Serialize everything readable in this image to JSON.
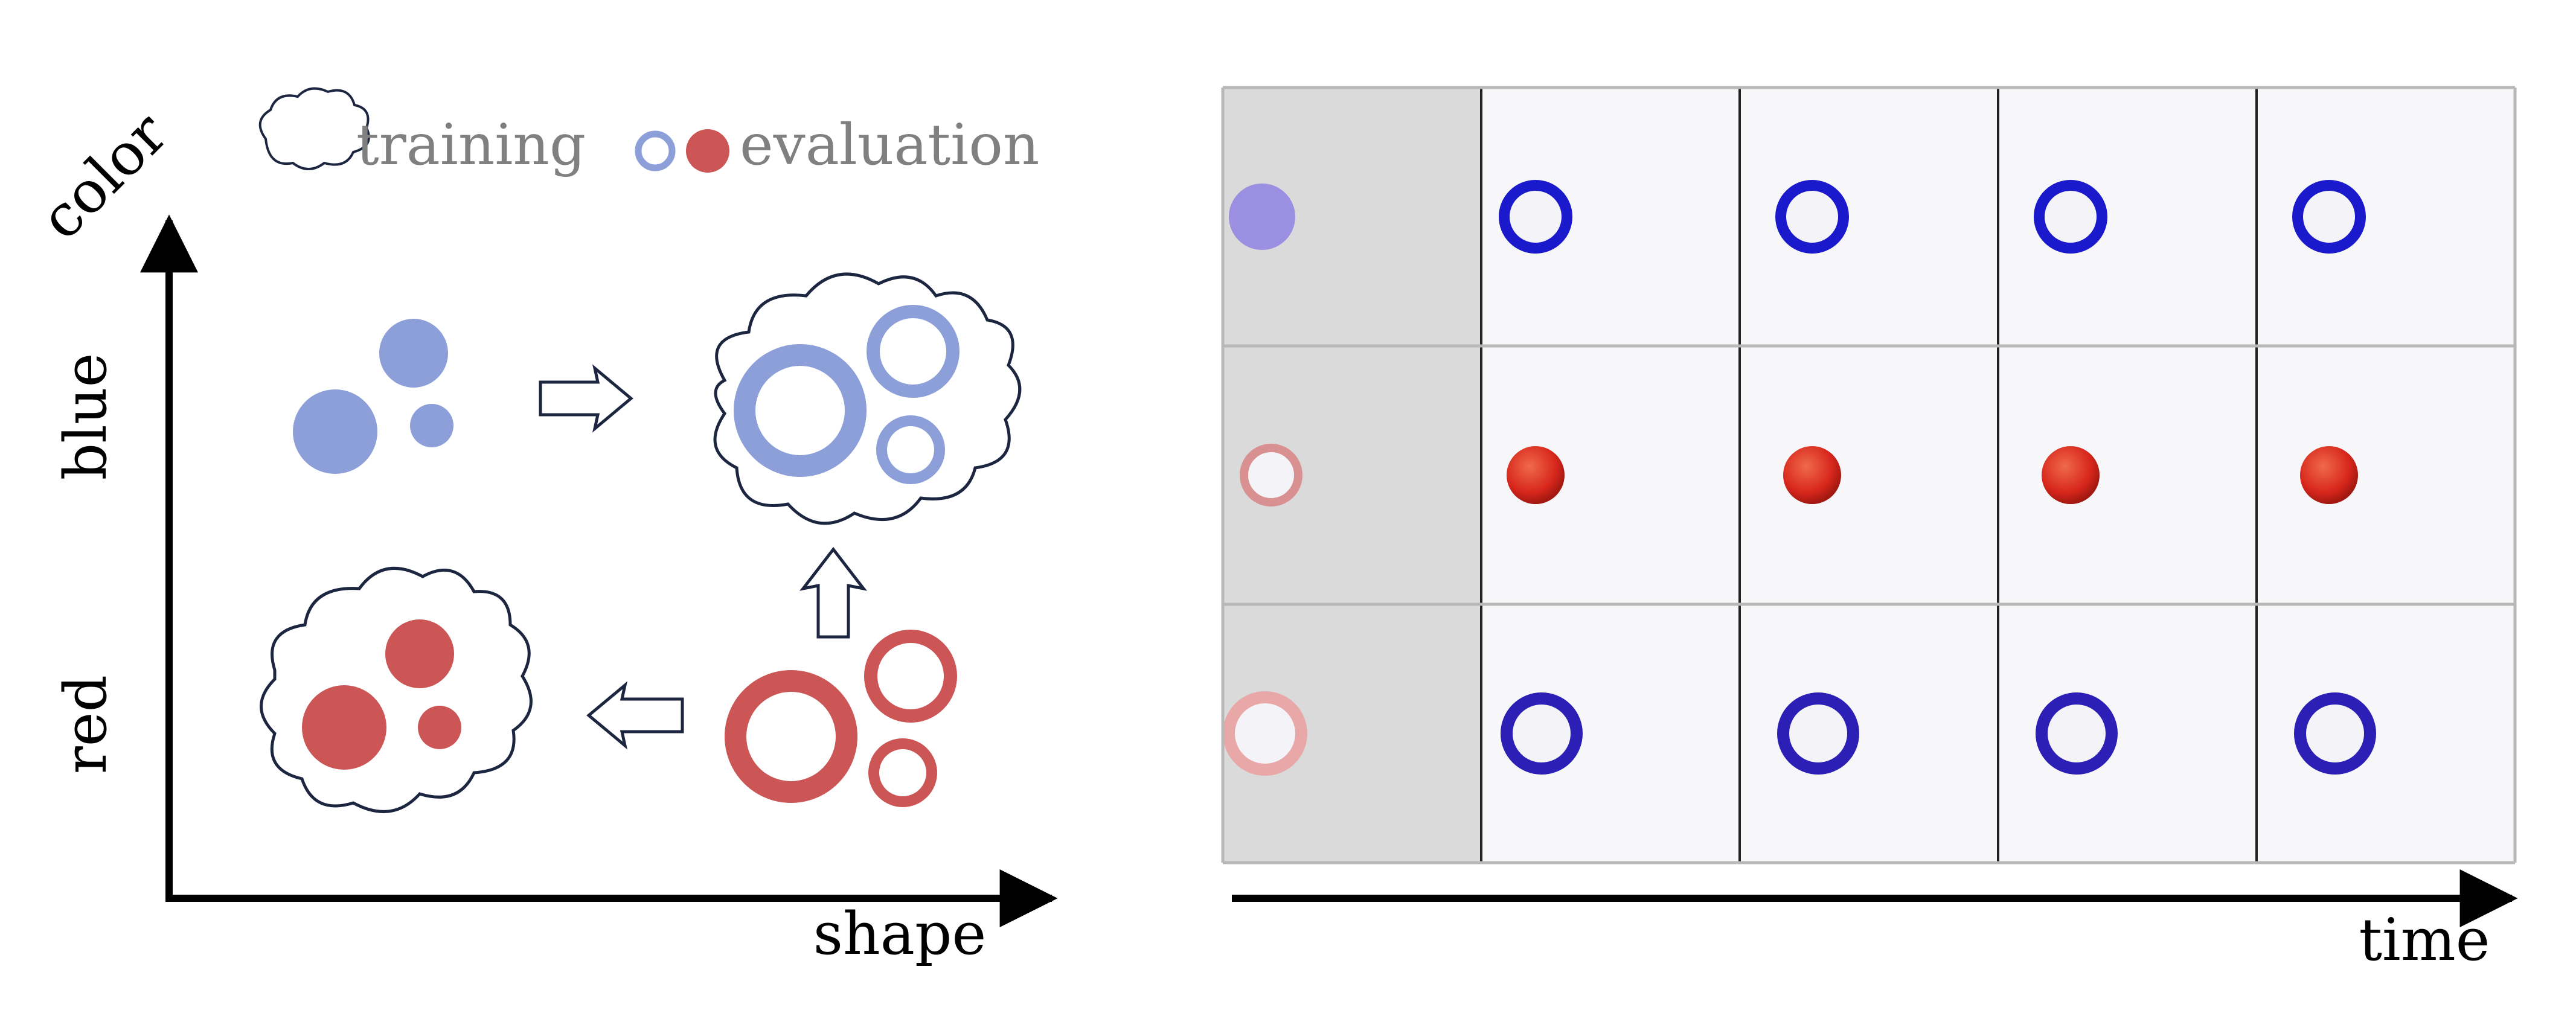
{
  "left_panel": {
    "y_axis_label": "color",
    "x_axis_label": "shape",
    "y_ticks": [
      "blue",
      "red"
    ],
    "legend": {
      "training": "training",
      "evaluation": "evaluation"
    }
  },
  "right_panel": {
    "x_axis_label": "time",
    "grid": {
      "rows": [
        {
          "first": {
            "kind": "filled-disc",
            "color": "#9a8fe0"
          },
          "rest": {
            "kind": "ring",
            "color": "#1a1acc"
          }
        },
        {
          "first": {
            "kind": "ring",
            "color": "#d89090"
          },
          "rest": {
            "kind": "filled-disc",
            "color": "#d7261c"
          }
        },
        {
          "first": {
            "kind": "ring",
            "color": "#e8a8a8"
          },
          "rest": {
            "kind": "ring",
            "color": "#2b1fb5"
          }
        }
      ],
      "columns": 5,
      "highlight_first_column": true
    }
  },
  "colors": {
    "blue": "#8c9fd9",
    "red": "#cc5555",
    "outline": "#1c2640",
    "legend_text": "#808080",
    "grid_line": "#b8b8b8",
    "first_col_bg": "#dadada",
    "cell_bg": "#f7f7f9"
  }
}
